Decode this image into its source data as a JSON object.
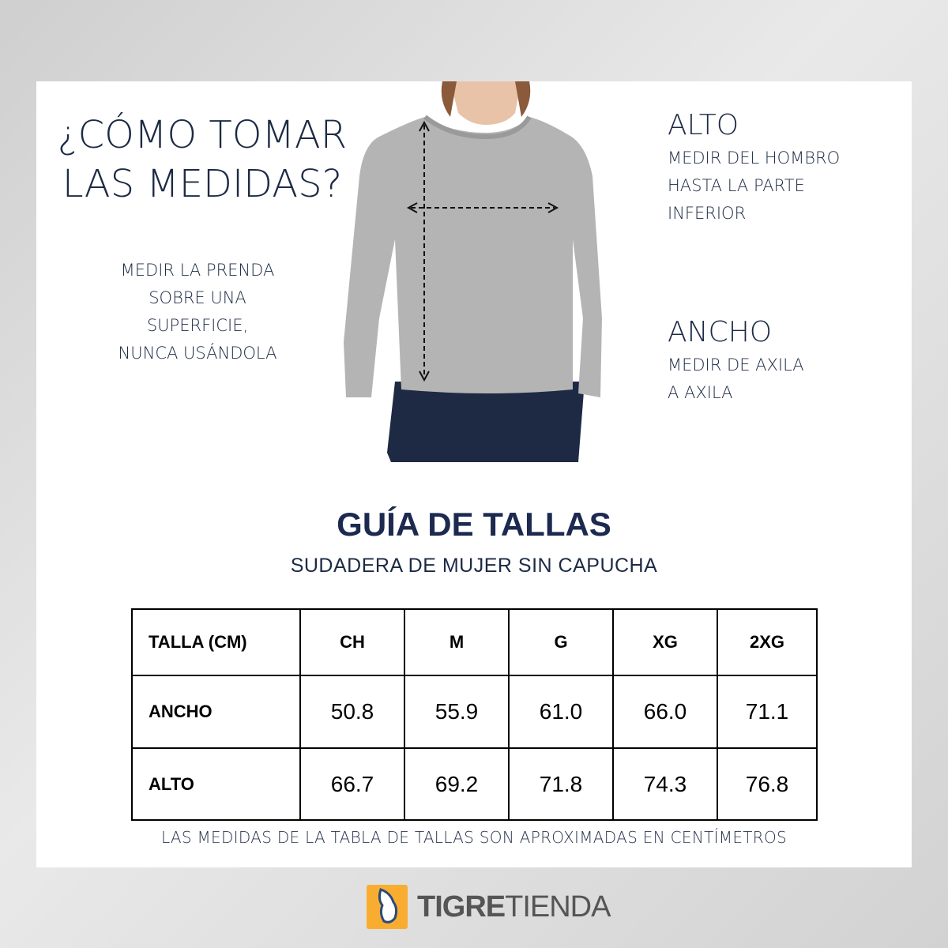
{
  "intro": {
    "title_line1": "¿CÓMO TOMAR",
    "title_line2": "LAS MEDIDAS?",
    "note_lines": [
      "MEDIR LA PRENDA",
      "SOBRE UNA",
      "SUPERFICIE,",
      "NUNCA USÁNDOLA"
    ]
  },
  "alto": {
    "heading": "ALTO",
    "lines": [
      "MEDIR DEL HOMBRO",
      "HASTA LA PARTE",
      "INFERIOR"
    ]
  },
  "ancho": {
    "heading": "ANCHO",
    "lines": [
      "MEDIR DE AXILA",
      "A AXILA"
    ]
  },
  "guide": {
    "title": "GUÍA DE TALLAS",
    "subtitle": "SUDADERA DE MUJER SIN CAPUCHA"
  },
  "table": {
    "header": [
      "TALLA (CM)",
      "CH",
      "M",
      "G",
      "XG",
      "2XG"
    ],
    "rows": [
      {
        "label": "ANCHO",
        "values": [
          "50.8",
          "55.9",
          "61.0",
          "66.0",
          "71.1"
        ]
      },
      {
        "label": "ALTO",
        "values": [
          "66.7",
          "69.2",
          "71.8",
          "74.3",
          "76.8"
        ]
      }
    ]
  },
  "footnote": "LAS MEDIDAS DE LA TABLA DE TALLAS SON APROXIMADAS EN CENTÍMETROS",
  "logo": {
    "text_bold": "TIGRE",
    "text_light": "TIENDA",
    "color": "#f8ad30"
  },
  "colors": {
    "text": "#1c2a44",
    "sweater": "#b4b4b4",
    "jeans": "#1e2a44"
  }
}
